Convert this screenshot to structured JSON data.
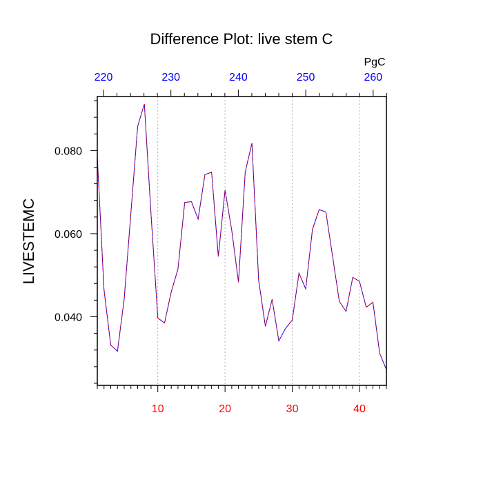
{
  "chart_data": {
    "type": "line",
    "title": "Difference Plot: live stem C",
    "ylabel": "LIVESTEMC",
    "top_axis_unit": "PgC",
    "xlim": [
      1,
      44
    ],
    "ylim": [
      0.0235,
      0.093
    ],
    "grid": "vertical dotted",
    "bottom_axis": {
      "ticks": [
        10,
        20,
        30,
        40
      ],
      "labels": [
        "10",
        "20",
        "30",
        "40"
      ],
      "label_color": "#ff0000"
    },
    "top_axis": {
      "ticks": [
        220,
        230,
        240,
        250,
        260
      ],
      "labels": [
        "220",
        "230",
        "240",
        "250",
        "260"
      ],
      "label_color": "#0000ff"
    },
    "y_axis": {
      "ticks": [
        0.04,
        0.06,
        0.08
      ],
      "labels": [
        "0.040",
        "0.060",
        "0.080"
      ]
    },
    "series": [
      {
        "color": "#0000ff",
        "style": "solid",
        "x": [
          1,
          2,
          3,
          4,
          5,
          6,
          7,
          8,
          9,
          10,
          11,
          12,
          13,
          14,
          15,
          16,
          17,
          18,
          19,
          20,
          21,
          22,
          23,
          24,
          25,
          26,
          27,
          28,
          29,
          30,
          31,
          32,
          33,
          34,
          35,
          36,
          37,
          38,
          39,
          40,
          41,
          42,
          43,
          44
        ],
        "values": [
          0.0785,
          0.0465,
          0.0332,
          0.0317,
          0.0443,
          0.065,
          0.0858,
          0.0912,
          0.0645,
          0.0397,
          0.0385,
          0.046,
          0.0515,
          0.0675,
          0.0677,
          0.0635,
          0.0742,
          0.0748,
          0.0545,
          0.0705,
          0.0608,
          0.0483,
          0.0748,
          0.0818,
          0.0488,
          0.0377,
          0.0442,
          0.0342,
          0.0372,
          0.0392,
          0.0505,
          0.0467,
          0.061,
          0.0658,
          0.0652,
          0.0545,
          0.0437,
          0.0413,
          0.0495,
          0.0485,
          0.0423,
          0.0435,
          0.0312,
          0.0273
        ]
      },
      {
        "color": "#ff0000",
        "style": "dashed",
        "x": [
          1,
          2,
          3,
          4,
          5,
          6,
          7,
          8,
          9,
          10,
          11,
          12,
          13,
          14,
          15,
          16,
          17,
          18,
          19,
          20,
          21,
          22,
          23,
          24,
          25,
          26,
          27,
          28,
          29,
          30,
          31,
          32,
          33,
          34,
          35,
          36,
          37,
          38,
          39,
          40,
          41,
          42,
          43,
          44
        ],
        "values": [
          0.0785,
          0.0465,
          0.0332,
          0.0317,
          0.0443,
          0.065,
          0.0858,
          0.0912,
          0.0645,
          0.0397,
          0.0385,
          0.046,
          0.0515,
          0.0675,
          0.0677,
          0.0635,
          0.0742,
          0.0748,
          0.0545,
          0.0705,
          0.0608,
          0.0483,
          0.0748,
          0.0818,
          0.0488,
          0.0377,
          0.0442,
          0.0342,
          0.0372,
          0.0392,
          0.0505,
          0.0467,
          0.061,
          0.0658,
          0.0652,
          0.0545,
          0.0437,
          0.0413,
          0.0495,
          0.0485,
          0.0423,
          0.0435,
          0.0312,
          0.0273
        ]
      }
    ]
  }
}
